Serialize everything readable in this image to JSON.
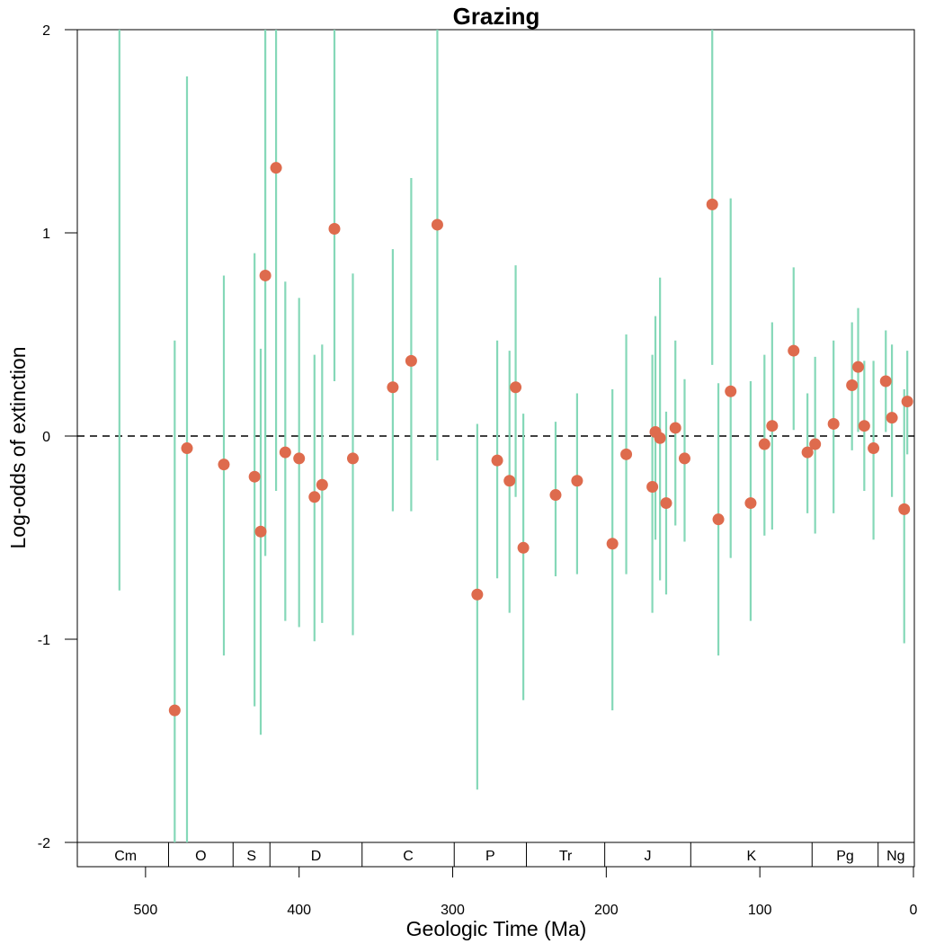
{
  "chart_data": {
    "type": "scatter",
    "title": "Grazing",
    "xlabel": "Geologic Time (Ma)",
    "ylabel": "Log-odds of extinction",
    "x_reversed": true,
    "xlim": [
      545,
      0
    ],
    "ylim": [
      -2,
      2
    ],
    "x_ticks": [
      500,
      400,
      300,
      200,
      100,
      0
    ],
    "y_ticks": [
      -2,
      -1,
      0,
      1,
      2
    ],
    "y_tick_labels": [
      "-2",
      "-1",
      "0",
      "1",
      "2"
    ],
    "reference_line": {
      "y": 0,
      "style": "dashed"
    },
    "grid": false,
    "colors": {
      "point": "#de6b4d",
      "error_bar": "#85d8b8",
      "axis": "#000000"
    },
    "periods": [
      {
        "label": "Cm",
        "start": 541,
        "end": 485
      },
      {
        "label": "O",
        "start": 485,
        "end": 443
      },
      {
        "label": "S",
        "start": 443,
        "end": 419
      },
      {
        "label": "D",
        "start": 419,
        "end": 359
      },
      {
        "label": "C",
        "start": 359,
        "end": 299
      },
      {
        "label": "P",
        "start": 299,
        "end": 252
      },
      {
        "label": "Tr",
        "start": 252,
        "end": 201
      },
      {
        "label": "J",
        "start": 201,
        "end": 145
      },
      {
        "label": "K",
        "start": 145,
        "end": 66
      },
      {
        "label": "Pg",
        "start": 66,
        "end": 23
      },
      {
        "label": "Ng",
        "start": 23,
        "end": 0
      }
    ],
    "series": [
      {
        "points": [
          {
            "x": 517,
            "y": null,
            "lo": -0.76,
            "hi": 2.0
          },
          {
            "x": 481,
            "y": -1.35,
            "lo": -2.0,
            "hi": 0.47
          },
          {
            "x": 473,
            "y": -0.06,
            "lo": -2.0,
            "hi": 1.77
          },
          {
            "x": 449,
            "y": -0.14,
            "lo": -1.08,
            "hi": 0.79
          },
          {
            "x": 429,
            "y": -0.2,
            "lo": -1.33,
            "hi": 0.9
          },
          {
            "x": 425,
            "y": -0.47,
            "lo": -1.47,
            "hi": 0.43
          },
          {
            "x": 422,
            "y": 0.79,
            "lo": -0.59,
            "hi": 2.0
          },
          {
            "x": 415,
            "y": 1.32,
            "lo": -0.27,
            "hi": 2.0
          },
          {
            "x": 409,
            "y": -0.08,
            "lo": -0.91,
            "hi": 0.76
          },
          {
            "x": 400,
            "y": -0.11,
            "lo": -0.94,
            "hi": 0.68
          },
          {
            "x": 390,
            "y": -0.3,
            "lo": -1.01,
            "hi": 0.4
          },
          {
            "x": 385,
            "y": -0.24,
            "lo": -0.92,
            "hi": 0.45
          },
          {
            "x": 377,
            "y": 1.02,
            "lo": 0.27,
            "hi": 2.0
          },
          {
            "x": 365,
            "y": -0.11,
            "lo": -0.98,
            "hi": 0.8
          },
          {
            "x": 339,
            "y": 0.24,
            "lo": -0.37,
            "hi": 0.92
          },
          {
            "x": 327,
            "y": 0.37,
            "lo": -0.37,
            "hi": 1.27
          },
          {
            "x": 310,
            "y": 1.04,
            "lo": -0.12,
            "hi": 2.0
          },
          {
            "x": 284,
            "y": -0.78,
            "lo": -1.74,
            "hi": 0.06
          },
          {
            "x": 271,
            "y": -0.12,
            "lo": -0.7,
            "hi": 0.47
          },
          {
            "x": 263,
            "y": -0.22,
            "lo": -0.87,
            "hi": 0.42
          },
          {
            "x": 259,
            "y": 0.24,
            "lo": -0.3,
            "hi": 0.84
          },
          {
            "x": 254,
            "y": -0.55,
            "lo": -1.3,
            "hi": 0.11
          },
          {
            "x": 233,
            "y": -0.29,
            "lo": -0.69,
            "hi": 0.07
          },
          {
            "x": 219,
            "y": -0.22,
            "lo": -0.68,
            "hi": 0.21
          },
          {
            "x": 196,
            "y": -0.53,
            "lo": -1.35,
            "hi": 0.23
          },
          {
            "x": 187,
            "y": -0.09,
            "lo": -0.68,
            "hi": 0.5
          },
          {
            "x": 170,
            "y": -0.25,
            "lo": -0.87,
            "hi": 0.4
          },
          {
            "x": 168,
            "y": 0.02,
            "lo": -0.51,
            "hi": 0.59
          },
          {
            "x": 165,
            "y": -0.01,
            "lo": -0.71,
            "hi": 0.78
          },
          {
            "x": 161,
            "y": -0.33,
            "lo": -0.78,
            "hi": 0.12
          },
          {
            "x": 155,
            "y": 0.04,
            "lo": -0.44,
            "hi": 0.47
          },
          {
            "x": 149,
            "y": -0.11,
            "lo": -0.52,
            "hi": 0.28
          },
          {
            "x": 131,
            "y": 1.14,
            "lo": 0.35,
            "hi": 2.0
          },
          {
            "x": 127,
            "y": -0.41,
            "lo": -1.08,
            "hi": 0.26
          },
          {
            "x": 119,
            "y": 0.22,
            "lo": -0.6,
            "hi": 1.17
          },
          {
            "x": 106,
            "y": -0.33,
            "lo": -0.91,
            "hi": 0.27
          },
          {
            "x": 97,
            "y": -0.04,
            "lo": -0.49,
            "hi": 0.4
          },
          {
            "x": 92,
            "y": 0.05,
            "lo": -0.46,
            "hi": 0.56
          },
          {
            "x": 78,
            "y": 0.42,
            "lo": 0.03,
            "hi": 0.83
          },
          {
            "x": 69,
            "y": -0.08,
            "lo": -0.38,
            "hi": 0.21
          },
          {
            "x": 64,
            "y": -0.04,
            "lo": -0.48,
            "hi": 0.39
          },
          {
            "x": 52,
            "y": 0.06,
            "lo": -0.38,
            "hi": 0.47
          },
          {
            "x": 40,
            "y": 0.25,
            "lo": -0.07,
            "hi": 0.56
          },
          {
            "x": 36,
            "y": 0.34,
            "lo": 0.02,
            "hi": 0.63
          },
          {
            "x": 32,
            "y": 0.05,
            "lo": -0.27,
            "hi": 0.37
          },
          {
            "x": 26,
            "y": -0.06,
            "lo": -0.51,
            "hi": 0.37
          },
          {
            "x": 18,
            "y": 0.27,
            "lo": 0.02,
            "hi": 0.52
          },
          {
            "x": 14,
            "y": 0.09,
            "lo": -0.3,
            "hi": 0.45
          },
          {
            "x": 6,
            "y": -0.36,
            "lo": -1.02,
            "hi": 0.23
          },
          {
            "x": 4,
            "y": 0.17,
            "lo": -0.09,
            "hi": 0.42
          }
        ]
      }
    ]
  }
}
